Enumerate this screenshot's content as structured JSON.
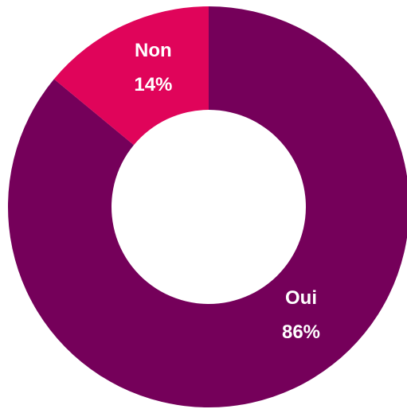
{
  "chart_data": {
    "type": "pie",
    "donut": true,
    "title": "",
    "slices": [
      {
        "label": "Oui",
        "value": 86,
        "value_label": "86%",
        "color": "#75005a"
      },
      {
        "label": "Non",
        "value": 14,
        "value_label": "14%",
        "color": "#e0045a"
      }
    ],
    "start_angle_deg": 0,
    "direction": "clockwise",
    "legend": "none"
  }
}
